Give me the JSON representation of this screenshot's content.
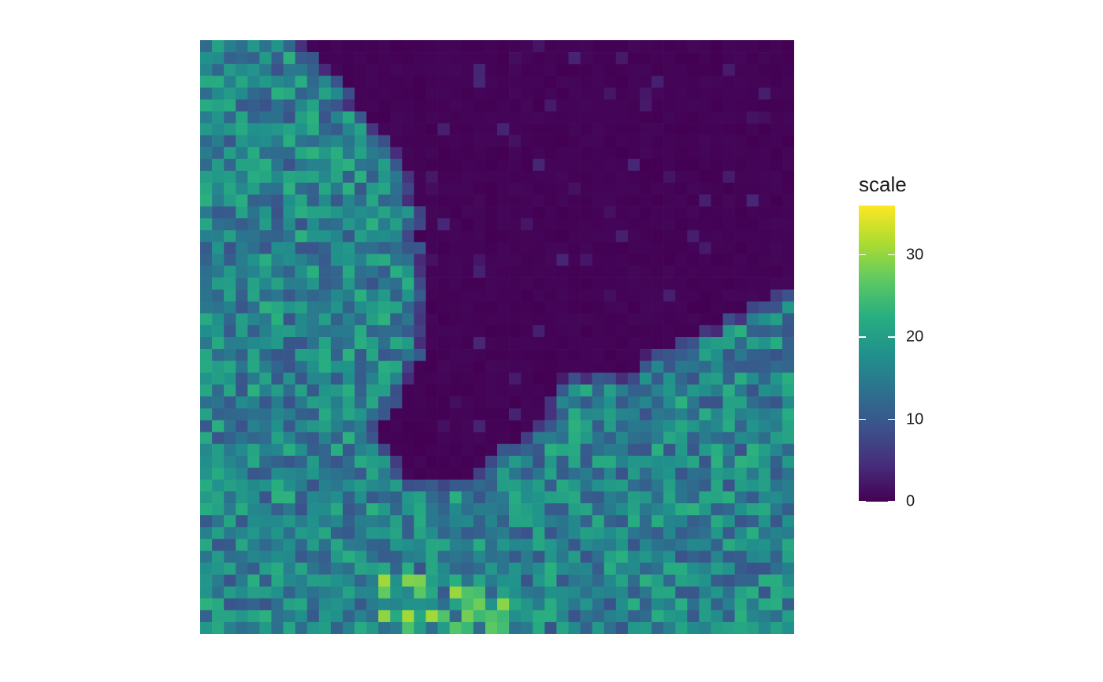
{
  "chart_data": {
    "type": "heatmap",
    "grid": {
      "cols": 50,
      "rows": 50
    },
    "legend": {
      "title": "scale",
      "range": [
        0,
        36
      ],
      "ticks": [
        0,
        10,
        20,
        30
      ],
      "tick_labels": [
        "0",
        "10",
        "20",
        "30"
      ],
      "palette": "viridis",
      "colors": [
        "#440154",
        "#472d7b",
        "#3b528b",
        "#2c728e",
        "#21918c",
        "#28ae80",
        "#5ec962",
        "#addc30",
        "#fde725"
      ]
    },
    "notes": "50x50 grid of cells; low values (~0) in the upper-right region and a central band extending down to the bottom-middle, higher values (~10-30) on the left side and lower-right; highest values near bottom-center.",
    "generator": {
      "seed": 17,
      "max": 36
    }
  }
}
